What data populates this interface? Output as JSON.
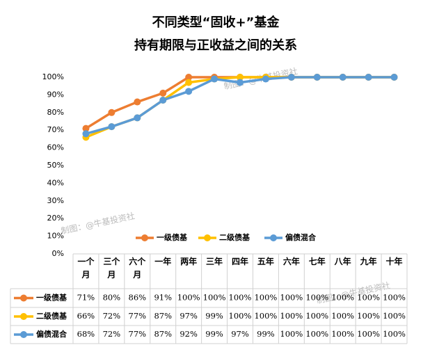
{
  "chart_data": {
    "type": "line",
    "title": "不同类型“固收+”基金",
    "subtitle": "持有期限与正收益之间的关系",
    "categories": [
      "一个月",
      "三个月",
      "六个月",
      "一年",
      "两年",
      "三年",
      "四年",
      "五年",
      "六年",
      "七年",
      "八年",
      "九年",
      "十年"
    ],
    "series": [
      {
        "name": "一级债基",
        "color": "#ED7D31",
        "values": [
          71,
          80,
          86,
          91,
          100,
          100,
          100,
          100,
          100,
          100,
          100,
          100,
          100
        ],
        "value_labels": [
          "71%",
          "80%",
          "86%",
          "91%",
          "100%",
          "100%",
          "100%",
          "100%",
          "100%",
          "100%",
          "100%",
          "100%",
          "100%"
        ]
      },
      {
        "name": "二级债基",
        "color": "#FFC000",
        "values": [
          66,
          72,
          77,
          87,
          97,
          99,
          100,
          100,
          100,
          100,
          100,
          100,
          100
        ],
        "value_labels": [
          "66%",
          "72%",
          "77%",
          "87%",
          "97%",
          "99%",
          "100%",
          "100%",
          "100%",
          "100%",
          "100%",
          "100%",
          "100%"
        ]
      },
      {
        "name": "偏债混合",
        "color": "#5B9BD5",
        "values": [
          68,
          72,
          77,
          87,
          92,
          99,
          97,
          99,
          100,
          100,
          100,
          100,
          100
        ],
        "value_labels": [
          "68%",
          "72%",
          "77%",
          "87%",
          "92%",
          "99%",
          "97%",
          "99%",
          "100%",
          "100%",
          "100%",
          "100%",
          "100%"
        ]
      }
    ],
    "ylim": [
      0,
      100
    ],
    "yticks": [
      {
        "value": 0,
        "label": "0%"
      },
      {
        "value": 10,
        "label": "10%"
      },
      {
        "value": 20,
        "label": "20%"
      },
      {
        "value": 30,
        "label": "30%"
      },
      {
        "value": 40,
        "label": "40%"
      },
      {
        "value": 50,
        "label": "50%"
      },
      {
        "value": 60,
        "label": "60%"
      },
      {
        "value": 70,
        "label": "70%"
      },
      {
        "value": 80,
        "label": "80%"
      },
      {
        "value": 90,
        "label": "90%"
      },
      {
        "value": 100,
        "label": "100%"
      }
    ],
    "grid": false,
    "watermarks": [
      "制图：@牛基投资社",
      "制图：@牛基投资社",
      "制图：@牛基投资社"
    ]
  }
}
